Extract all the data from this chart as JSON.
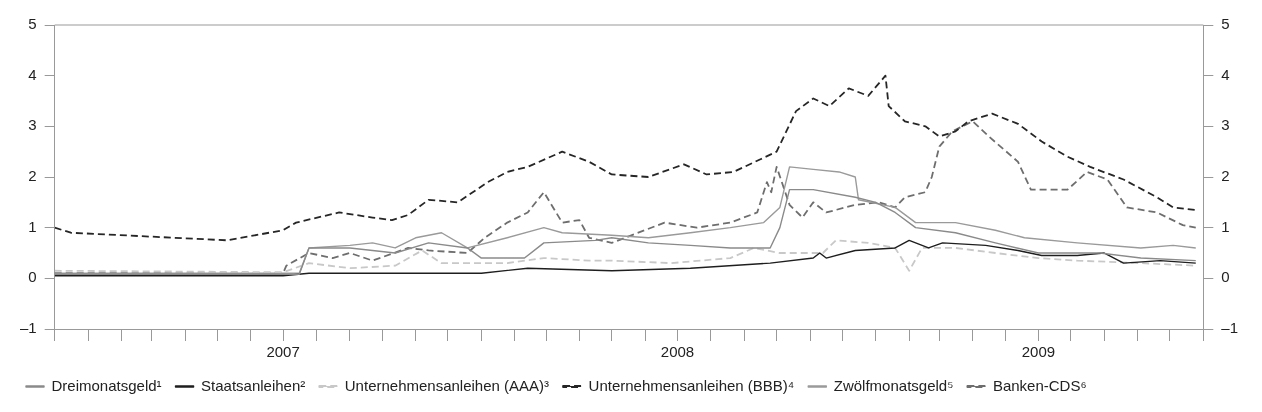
{
  "chart_data": {
    "type": "line",
    "legend": "bottom",
    "grid": false,
    "marker": "none",
    "xlim": [
      "2006-12-01",
      "2009-11-01"
    ],
    "xticks": [
      {
        "value": "2006-12-01",
        "label": null
      },
      {
        "value": "2007-01-01",
        "label": null
      },
      {
        "value": "2007-02-01",
        "label": null
      },
      {
        "value": "2007-03-01",
        "label": null
      },
      {
        "value": "2007-04-01",
        "label": null
      },
      {
        "value": "2007-05-01",
        "label": null
      },
      {
        "value": "2007-06-01",
        "label": null
      },
      {
        "value": "2007-07-01",
        "label": "2007"
      },
      {
        "value": "2007-08-01",
        "label": null
      },
      {
        "value": "2007-09-01",
        "label": null
      },
      {
        "value": "2007-10-01",
        "label": null
      },
      {
        "value": "2007-11-01",
        "label": null
      },
      {
        "value": "2007-12-01",
        "label": null
      },
      {
        "value": "2008-01-01",
        "label": null
      },
      {
        "value": "2008-02-01",
        "label": null
      },
      {
        "value": "2008-03-01",
        "label": null
      },
      {
        "value": "2008-04-01",
        "label": null
      },
      {
        "value": "2008-05-01",
        "label": null
      },
      {
        "value": "2008-06-01",
        "label": null
      },
      {
        "value": "2008-07-01",
        "label": "2008"
      },
      {
        "value": "2008-08-01",
        "label": null
      },
      {
        "value": "2008-09-01",
        "label": null
      },
      {
        "value": "2008-10-01",
        "label": null
      },
      {
        "value": "2008-11-01",
        "label": null
      },
      {
        "value": "2008-12-01",
        "label": null
      },
      {
        "value": "2009-01-01",
        "label": null
      },
      {
        "value": "2009-02-01",
        "label": null
      },
      {
        "value": "2009-03-01",
        "label": null
      },
      {
        "value": "2009-04-01",
        "label": null
      },
      {
        "value": "2009-05-01",
        "label": null
      },
      {
        "value": "2009-06-01",
        "label": "2009"
      },
      {
        "value": "2009-07-01",
        "label": null
      },
      {
        "value": "2009-08-01",
        "label": null
      },
      {
        "value": "2009-09-01",
        "label": null
      },
      {
        "value": "2009-10-01",
        "label": null
      },
      {
        "value": "2009-11-01",
        "label": null
      }
    ],
    "ylim": [
      -1,
      5
    ],
    "yticks": [
      {
        "value": -1,
        "label": "–1"
      },
      0,
      1,
      2,
      3,
      4,
      5
    ],
    "y2lim": [
      -1,
      5
    ],
    "y2ticks": [
      {
        "value": -1,
        "label": "–1"
      },
      0,
      1,
      2,
      3,
      4,
      5
    ],
    "series": [
      {
        "name": "Dreimonatsgeld¹",
        "color": "#8a8a8a",
        "line_style": "solid",
        "x": [
          "2006-12-01",
          "2007-07-16",
          "2007-07-25",
          "2007-09-01",
          "2007-10-13",
          "2007-11-13",
          "2007-12-19",
          "2008-01-01",
          "2008-02-10",
          "2008-02-28",
          "2008-04-16",
          "2008-05-01",
          "2008-06-04",
          "2008-07-13",
          "2008-08-19",
          "2008-09-25",
          "2008-10-04",
          "2008-10-13",
          "2008-11-04",
          "2008-12-13",
          "2009-01-01",
          "2009-01-19",
          "2009-02-07",
          "2009-03-16",
          "2009-04-22",
          "2009-06-01",
          "2009-07-28",
          "2009-09-04",
          "2009-10-25"
        ],
        "values": [
          0.08,
          0.08,
          0.6,
          0.6,
          0.5,
          0.7,
          0.6,
          0.4,
          0.4,
          0.7,
          0.75,
          0.8,
          0.7,
          0.65,
          0.6,
          0.6,
          1.0,
          1.75,
          1.75,
          1.6,
          1.5,
          1.3,
          1.0,
          0.9,
          0.7,
          0.5,
          0.5,
          0.4,
          0.35
        ]
      },
      {
        "name": "Staatsanleihen²",
        "color": "#1e1e1e",
        "line_style": "solid",
        "x": [
          "2006-12-01",
          "2007-07-01",
          "2007-07-25",
          "2008-01-01",
          "2008-02-13",
          "2008-05-01",
          "2008-07-13",
          "2008-09-25",
          "2008-11-04",
          "2008-11-10",
          "2008-11-16",
          "2008-12-13",
          "2009-01-19",
          "2009-02-01",
          "2009-02-19",
          "2009-03-04",
          "2009-04-13",
          "2009-05-13",
          "2009-06-04",
          "2009-07-07",
          "2009-08-01",
          "2009-08-19",
          "2009-09-22",
          "2009-10-25"
        ],
        "values": [
          0.05,
          0.05,
          0.1,
          0.1,
          0.2,
          0.15,
          0.2,
          0.3,
          0.4,
          0.5,
          0.4,
          0.55,
          0.6,
          0.75,
          0.6,
          0.7,
          0.65,
          0.55,
          0.45,
          0.45,
          0.5,
          0.3,
          0.35,
          0.3
        ]
      },
      {
        "name": "Unternehmensanleihen (AAA)³",
        "color": "#c8c8c8",
        "line_style": "dashed",
        "x": [
          "2006-12-01",
          "2007-07-01",
          "2007-07-25",
          "2007-09-01",
          "2007-10-13",
          "2007-11-07",
          "2007-11-25",
          "2008-01-25",
          "2008-02-28",
          "2008-04-10",
          "2008-05-01",
          "2008-06-25",
          "2008-08-19",
          "2008-09-10",
          "2008-10-04",
          "2008-11-13",
          "2008-11-25",
          "2008-12-25",
          "2009-01-19",
          "2009-02-01",
          "2009-02-13",
          "2009-03-16",
          "2009-04-22",
          "2009-06-01",
          "2009-07-07",
          "2009-09-04",
          "2009-10-25"
        ],
        "values": [
          0.15,
          0.12,
          0.3,
          0.2,
          0.25,
          0.55,
          0.3,
          0.3,
          0.4,
          0.35,
          0.35,
          0.3,
          0.4,
          0.6,
          0.5,
          0.5,
          0.75,
          0.7,
          0.6,
          0.15,
          0.6,
          0.6,
          0.5,
          0.4,
          0.35,
          0.3,
          0.25
        ]
      },
      {
        "name": "Unternehmensanleihen (BBB)⁴",
        "color": "#262626",
        "line_style": "dashed",
        "x": [
          "2006-12-01",
          "2006-12-16",
          "2007-05-10",
          "2007-07-01",
          "2007-07-13",
          "2007-08-22",
          "2007-09-22",
          "2007-10-10",
          "2007-10-25",
          "2007-11-13",
          "2007-12-10",
          "2008-01-07",
          "2008-01-25",
          "2008-02-13",
          "2008-03-16",
          "2008-04-10",
          "2008-05-01",
          "2008-06-04",
          "2008-07-07",
          "2008-07-28",
          "2008-08-22",
          "2008-09-16",
          "2008-10-01",
          "2008-10-19",
          "2008-11-04",
          "2008-11-19",
          "2008-12-07",
          "2008-12-25",
          "2009-01-10",
          "2009-01-13",
          "2009-01-28",
          "2009-02-16",
          "2009-03-01",
          "2009-03-16",
          "2009-03-28",
          "2009-04-19",
          "2009-05-13",
          "2009-06-04",
          "2009-06-28",
          "2009-07-19",
          "2009-08-19",
          "2009-09-19",
          "2009-10-04",
          "2009-10-25"
        ],
        "values": [
          1.0,
          0.9,
          0.75,
          0.95,
          1.1,
          1.3,
          1.2,
          1.15,
          1.25,
          1.55,
          1.5,
          1.9,
          2.1,
          2.2,
          2.5,
          2.3,
          2.05,
          2.0,
          2.25,
          2.05,
          2.1,
          2.35,
          2.5,
          3.3,
          3.55,
          3.4,
          3.75,
          3.6,
          4.0,
          3.4,
          3.1,
          3.0,
          2.8,
          2.9,
          3.1,
          3.25,
          3.05,
          2.7,
          2.4,
          2.2,
          1.95,
          1.6,
          1.4,
          1.35
        ]
      },
      {
        "name": "Zwölfmonatsgeld⁵",
        "color": "#9a9a9a",
        "line_style": "solid",
        "x": [
          "2006-12-01",
          "2007-07-16",
          "2007-07-25",
          "2007-09-01",
          "2007-09-22",
          "2007-10-13",
          "2007-11-01",
          "2007-11-25",
          "2007-12-19",
          "2008-01-25",
          "2008-02-28",
          "2008-03-16",
          "2008-05-01",
          "2008-06-04",
          "2008-07-13",
          "2008-08-19",
          "2008-09-19",
          "2008-10-04",
          "2008-10-13",
          "2008-11-04",
          "2008-11-28",
          "2008-12-13",
          "2008-12-16",
          "2009-01-19",
          "2009-02-07",
          "2009-03-16",
          "2009-04-22",
          "2009-05-19",
          "2009-07-07",
          "2009-09-04",
          "2009-10-04",
          "2009-10-25"
        ],
        "values": [
          0.1,
          0.1,
          0.6,
          0.65,
          0.7,
          0.6,
          0.8,
          0.9,
          0.6,
          0.8,
          1.0,
          0.9,
          0.85,
          0.8,
          0.9,
          1.0,
          1.1,
          1.4,
          2.2,
          2.15,
          2.1,
          2.0,
          1.55,
          1.4,
          1.1,
          1.1,
          0.95,
          0.8,
          0.7,
          0.6,
          0.65,
          0.6
        ]
      },
      {
        "name": "Banken-CDS⁶",
        "color": "#6e6e6e",
        "line_style": "dashed",
        "x": [
          "2006-12-01",
          "2007-07-01",
          "2007-07-04",
          "2007-07-25",
          "2007-08-16",
          "2007-09-01",
          "2007-09-22",
          "2007-10-25",
          "2007-11-13",
          "2007-12-19",
          "2008-01-04",
          "2008-01-25",
          "2008-02-13",
          "2008-02-28",
          "2008-03-16",
          "2008-04-01",
          "2008-04-10",
          "2008-05-01",
          "2008-06-19",
          "2008-07-19",
          "2008-08-19",
          "2008-09-13",
          "2008-09-22",
          "2008-09-26",
          "2008-10-01",
          "2008-10-13",
          "2008-10-25",
          "2008-11-04",
          "2008-11-16",
          "2008-12-13",
          "2009-01-04",
          "2009-01-19",
          "2009-01-28",
          "2009-02-16",
          "2009-02-22",
          "2009-03-01",
          "2009-03-13",
          "2009-04-01",
          "2009-04-16",
          "2009-05-13",
          "2009-05-25",
          "2009-06-28",
          "2009-07-16",
          "2009-08-04",
          "2009-08-22",
          "2009-09-19",
          "2009-10-13",
          "2009-10-25"
        ],
        "values": [
          0.1,
          0.1,
          0.25,
          0.5,
          0.4,
          0.5,
          0.35,
          0.6,
          0.55,
          0.5,
          0.8,
          1.1,
          1.3,
          1.7,
          1.1,
          1.15,
          0.8,
          0.7,
          1.1,
          1.0,
          1.1,
          1.3,
          1.9,
          1.7,
          2.2,
          1.45,
          1.2,
          1.5,
          1.3,
          1.45,
          1.5,
          1.4,
          1.6,
          1.7,
          2.0,
          2.6,
          2.9,
          3.1,
          2.8,
          2.3,
          1.75,
          1.75,
          2.1,
          1.95,
          1.4,
          1.3,
          1.05,
          1.0
        ]
      }
    ]
  }
}
